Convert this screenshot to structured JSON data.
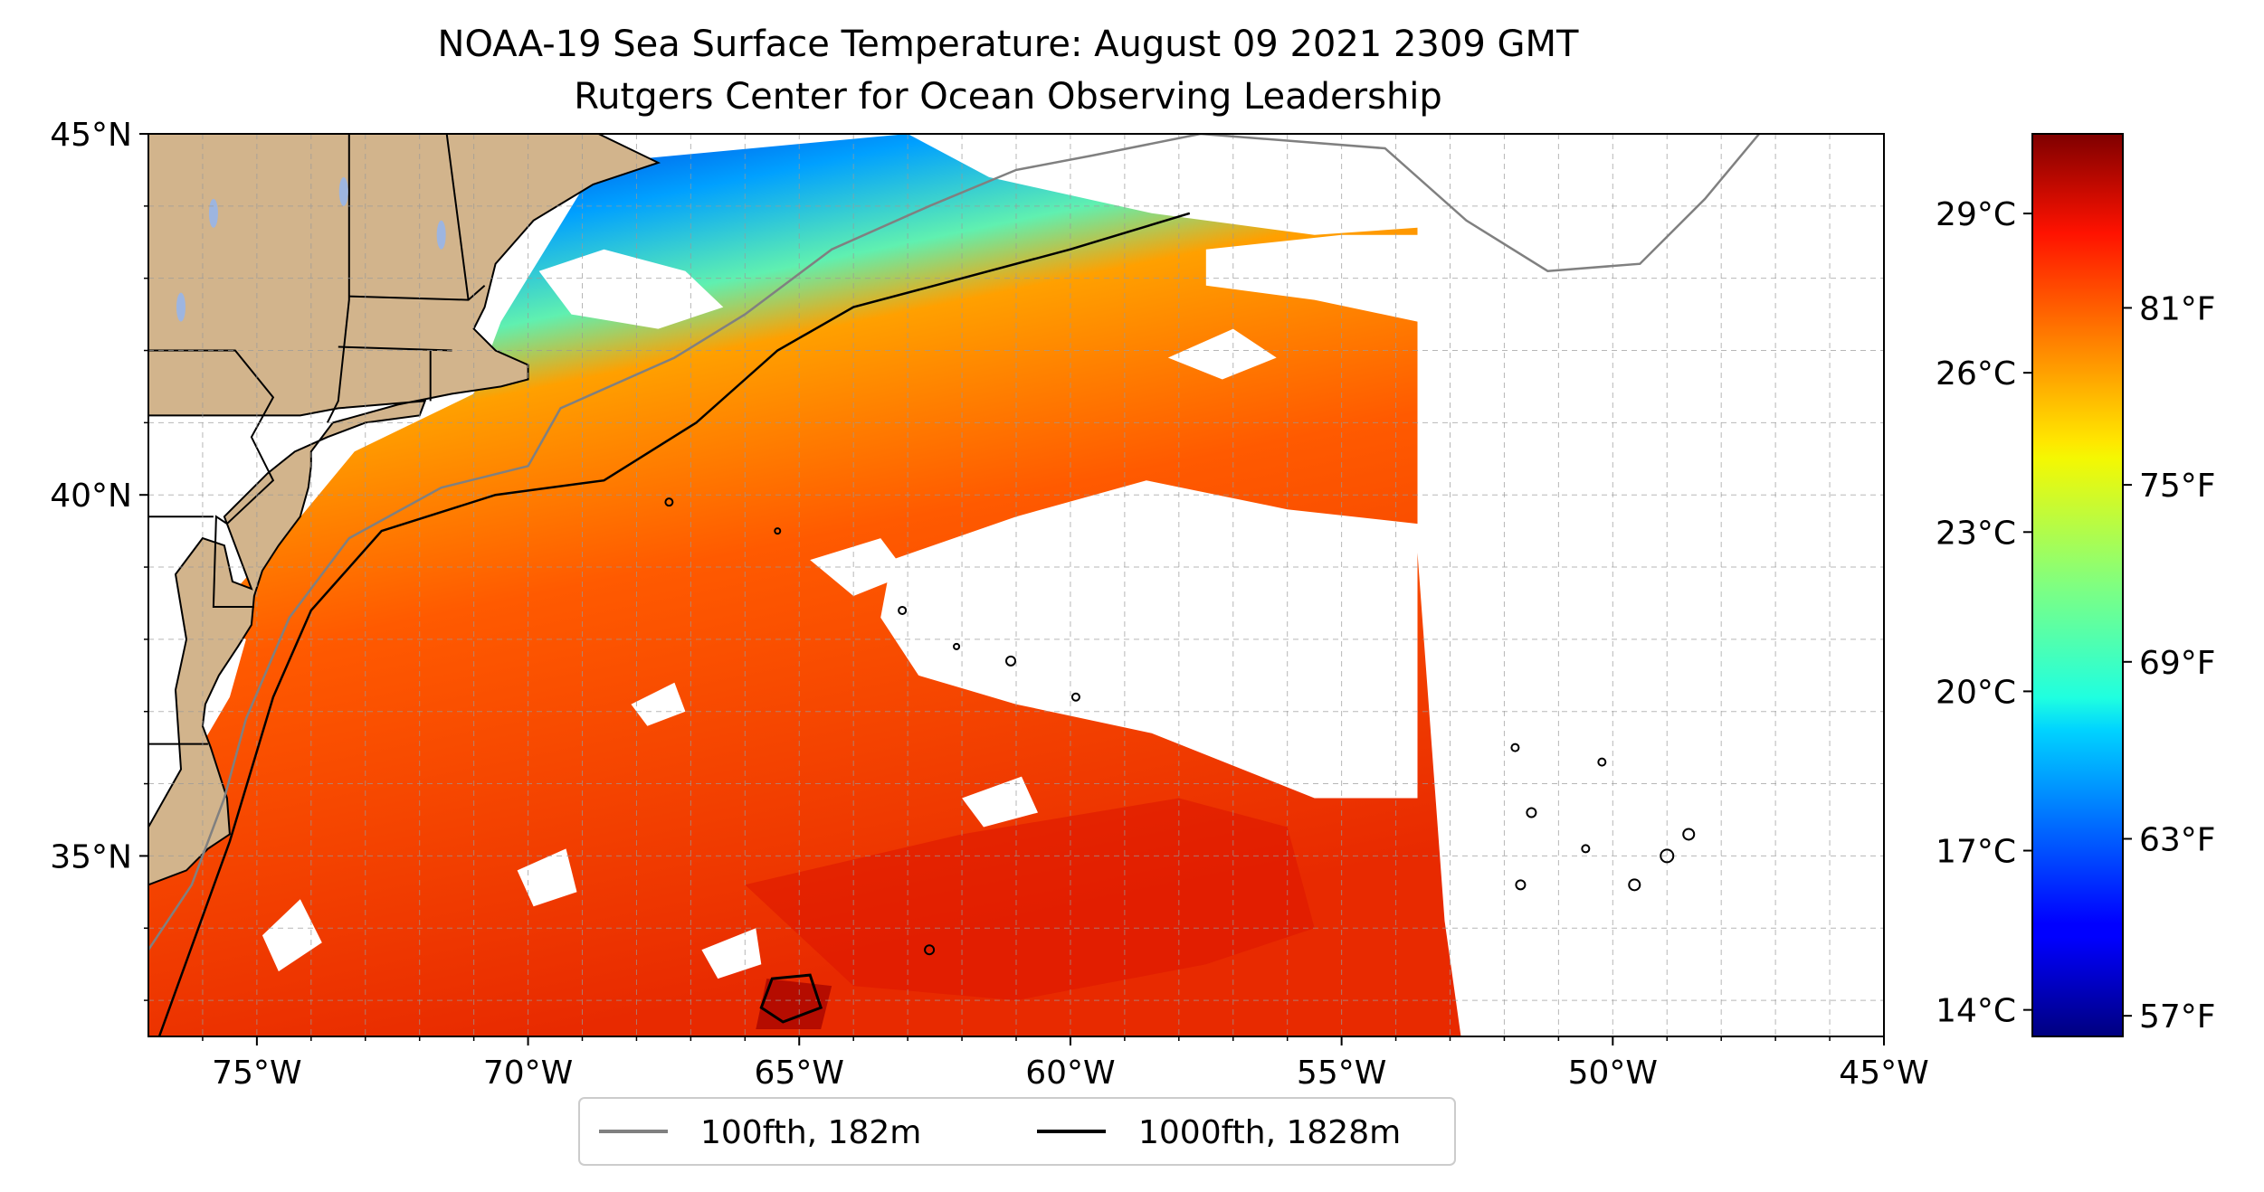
{
  "title": "NOAA-19 Sea Surface Temperature: August 09 2021 2309 GMT",
  "subtitle": "Rutgers Center for Ocean Observing Leadership",
  "map": {
    "lon_range": [
      -77,
      -45
    ],
    "lat_range": [
      32.5,
      45
    ],
    "lat_ticks": [
      {
        "value": 45,
        "label": "45°N"
      },
      {
        "value": 40,
        "label": "40°N"
      },
      {
        "value": 35,
        "label": "35°N"
      }
    ],
    "lon_ticks": [
      {
        "value": -75,
        "label": "75°W"
      },
      {
        "value": -70,
        "label": "70°W"
      },
      {
        "value": -65,
        "label": "65°W"
      },
      {
        "value": -60,
        "label": "60°W"
      },
      {
        "value": -55,
        "label": "55°W"
      },
      {
        "value": -50,
        "label": "50°W"
      },
      {
        "value": -45,
        "label": "45°W"
      }
    ],
    "gridlines": "dashed",
    "land_color": "#d2b48c",
    "ocean_nodata_color": "#ffffff"
  },
  "colorbar": {
    "colormap": "jet",
    "celsius_range": [
      13.5,
      30.5
    ],
    "celsius_ticks": [
      {
        "value": 29,
        "label": "29°C"
      },
      {
        "value": 26,
        "label": "26°C"
      },
      {
        "value": 23,
        "label": "23°C"
      },
      {
        "value": 20,
        "label": "20°C"
      },
      {
        "value": 17,
        "label": "17°C"
      },
      {
        "value": 14,
        "label": "14°C"
      }
    ],
    "fahrenheit_ticks": [
      {
        "value": 81,
        "label": "81°F"
      },
      {
        "value": 75,
        "label": "75°F"
      },
      {
        "value": 69,
        "label": "69°F"
      },
      {
        "value": 63,
        "label": "63°F"
      },
      {
        "value": 57,
        "label": "57°F"
      }
    ]
  },
  "legend": {
    "placement": "bottom-center",
    "items": [
      {
        "label": "100fth, 182m",
        "color": "#808080"
      },
      {
        "label": "1000fth, 1828m",
        "color": "#000000"
      }
    ]
  }
}
